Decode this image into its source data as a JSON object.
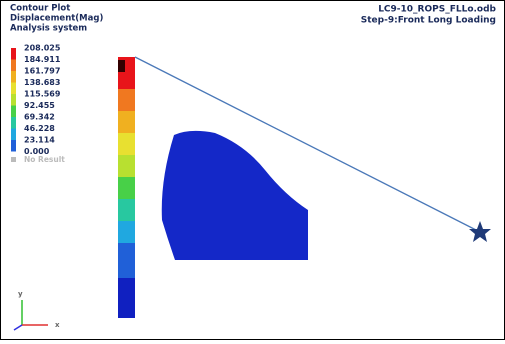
{
  "legend": {
    "title": "Contour Plot",
    "quantity": "Displacement(Mag)",
    "system": "Analysis system",
    "values": [
      "208.025",
      "184.911",
      "161.797",
      "138.683",
      "115.569",
      "92.455",
      "69.342",
      "46.228",
      "23.114",
      "0.000"
    ],
    "no_result": "No Result"
  },
  "header": {
    "file": "LC9-10_ROPS_FLLo.odb",
    "step": "Step-9:Front Long Loading"
  },
  "triad": {
    "y": "y",
    "x": "x"
  }
}
